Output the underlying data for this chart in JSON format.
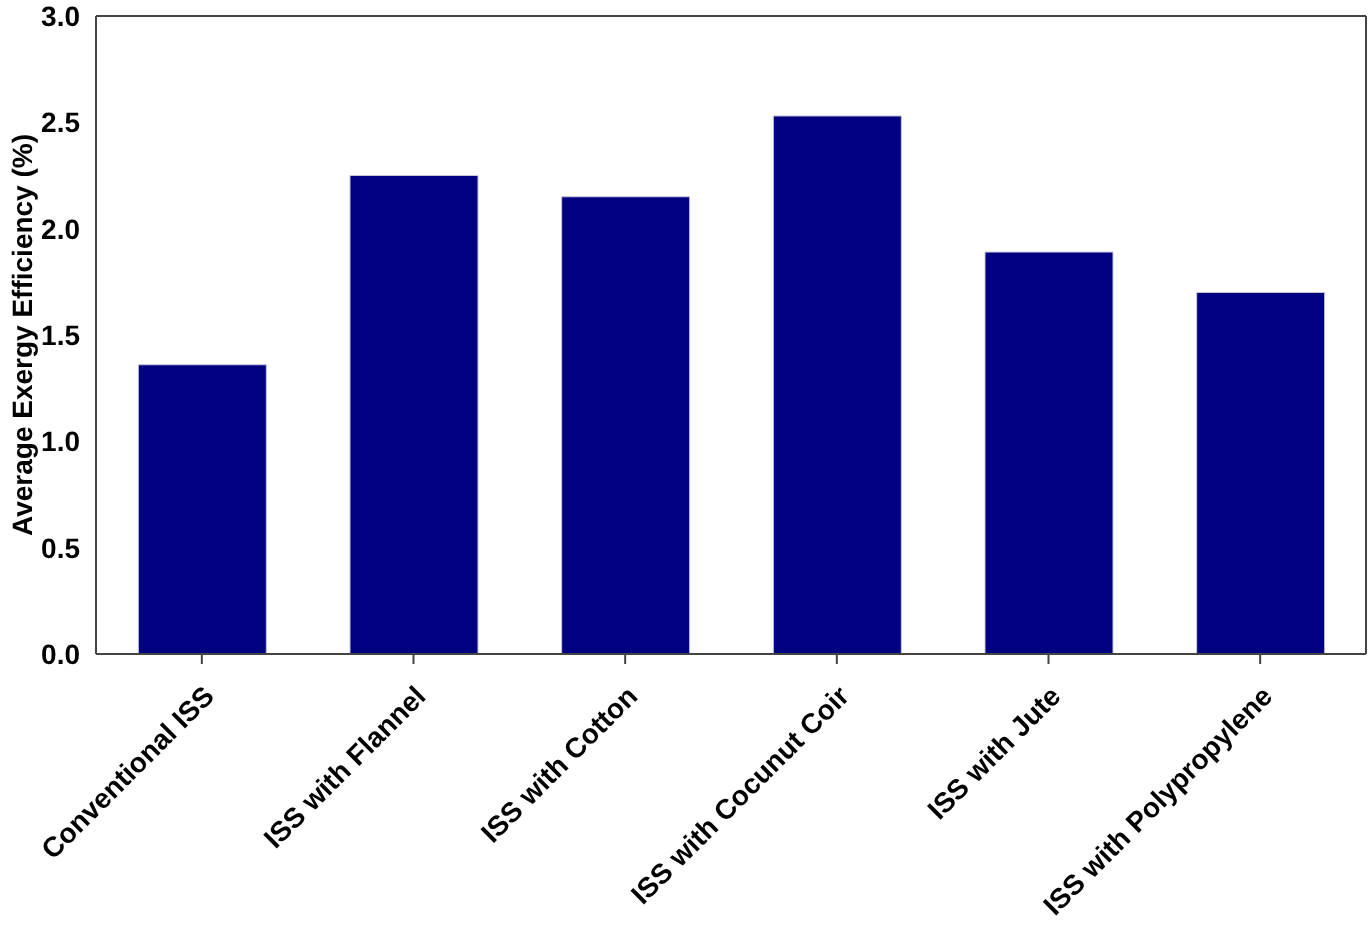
{
  "chart_data": {
    "type": "bar",
    "ylabel": "Average Exergy Efficiency (%)",
    "categories": [
      "Conventional ISS",
      "ISS with Flannel",
      "ISS with Cotton",
      "ISS with Cocunut Coir",
      "ISS with Jute",
      "ISS with Polypropylene"
    ],
    "values": [
      1.36,
      2.25,
      2.15,
      2.53,
      1.89,
      1.7
    ],
    "color": "#000080",
    "ylim": [
      0,
      3
    ],
    "yticks": [
      {
        "value": 0,
        "label": "0.0"
      },
      0.5,
      {
        "value": 1,
        "label": "1.0"
      },
      1.5,
      {
        "value": 2,
        "label": "2.0"
      },
      2.5,
      {
        "value": 3,
        "label": "3.0"
      }
    ],
    "grid": false,
    "legend": false
  }
}
